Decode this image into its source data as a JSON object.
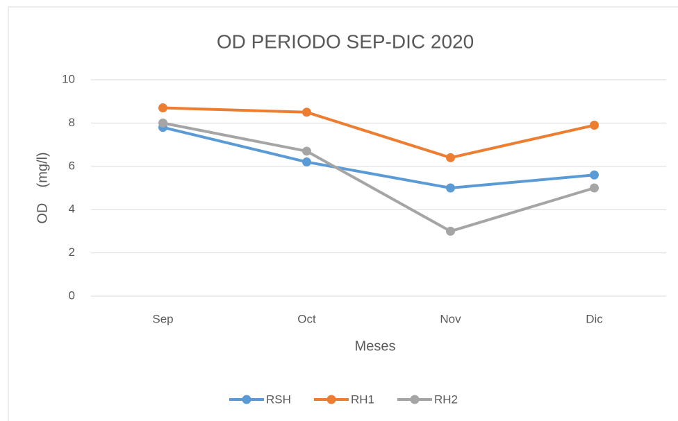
{
  "chart_data": {
    "type": "line",
    "title": "OD PERIODO SEP-DIC 2020",
    "x_label": "Meses",
    "y_label": "OD    (mg/l)",
    "categories": [
      "Sep",
      "Oct",
      "Nov",
      "Dic"
    ],
    "series": [
      {
        "name": "RSH",
        "color": "#5b9bd5",
        "values": [
          7.8,
          6.2,
          5.0,
          5.6
        ]
      },
      {
        "name": "RH1",
        "color": "#ed7d31",
        "values": [
          8.7,
          8.5,
          6.4,
          7.9
        ]
      },
      {
        "name": "RH2",
        "color": "#a5a5a5",
        "values": [
          8.0,
          6.7,
          3.0,
          5.0
        ]
      }
    ],
    "ylim": [
      0,
      10
    ],
    "yticks": [
      0,
      2,
      4,
      6,
      8,
      10
    ],
    "grid": true,
    "legend": "bottom"
  }
}
